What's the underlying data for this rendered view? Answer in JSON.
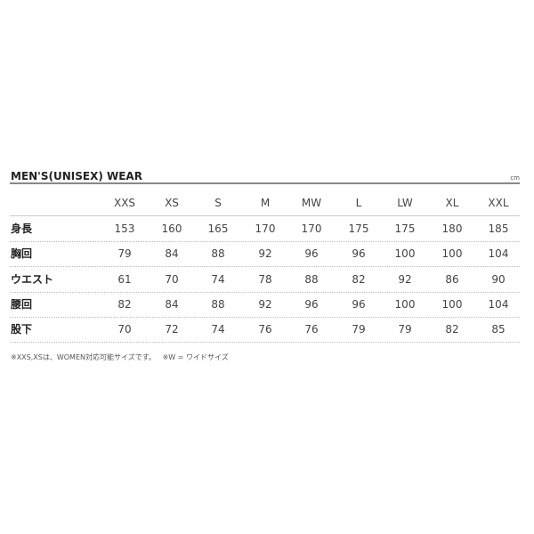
{
  "title": "MEN'S(UNISEX) WEAR",
  "unit": "cm",
  "sizes": [
    "XXS",
    "XS",
    "S",
    "M",
    "MW",
    "L",
    "LW",
    "XL",
    "XXL"
  ],
  "rows": [
    {
      "label": "身長",
      "values": [
        "153",
        "160",
        "165",
        "170",
        "170",
        "175",
        "175",
        "180",
        "185"
      ]
    },
    {
      "label": "胸回",
      "values": [
        "79",
        "84",
        "88",
        "92",
        "96",
        "96",
        "100",
        "100",
        "104"
      ]
    },
    {
      "label": "ウエスト",
      "values": [
        "61",
        "70",
        "74",
        "78",
        "88",
        "82",
        "92",
        "86",
        "90"
      ]
    },
    {
      "label": "腰回",
      "values": [
        "82",
        "84",
        "88",
        "92",
        "96",
        "96",
        "100",
        "100",
        "104"
      ]
    },
    {
      "label": "股下",
      "values": [
        "70",
        "72",
        "74",
        "76",
        "76",
        "79",
        "79",
        "82",
        "85"
      ]
    }
  ],
  "note": "※XXS,XSは、WOMEN対応可能サイズです。   ※W = ワイドサイズ"
}
